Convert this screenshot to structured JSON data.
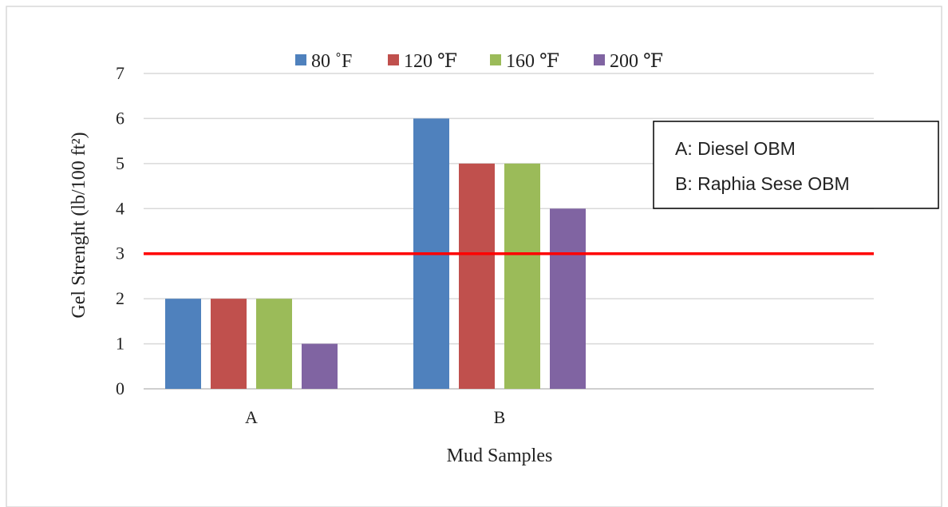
{
  "chart_data": {
    "type": "bar",
    "title": "",
    "xlabel": "Mud Samples",
    "ylabel": "Gel Strenght (lb/100 ft²)",
    "categories": [
      "A",
      "B"
    ],
    "ylim": [
      0,
      7
    ],
    "yticks": [
      0,
      1,
      2,
      3,
      4,
      5,
      6,
      7
    ],
    "grid": true,
    "legend_position": "top",
    "series": [
      {
        "name": "80 ˚F",
        "color": "#4f81bd",
        "values": [
          2,
          6
        ]
      },
      {
        "name": "120 ℉",
        "color": "#c0504d",
        "values": [
          2,
          5
        ]
      },
      {
        "name": "160 ℉",
        "color": "#9bbb59",
        "values": [
          2,
          5
        ]
      },
      {
        "name": "200 ℉",
        "color": "#8064a2",
        "values": [
          1,
          4
        ]
      }
    ],
    "reference_line": {
      "value": 3,
      "color": "#ff0000"
    },
    "annotation_box": {
      "lines": [
        "A: Diesel OBM",
        "B: Raphia Sese OBM"
      ]
    }
  }
}
